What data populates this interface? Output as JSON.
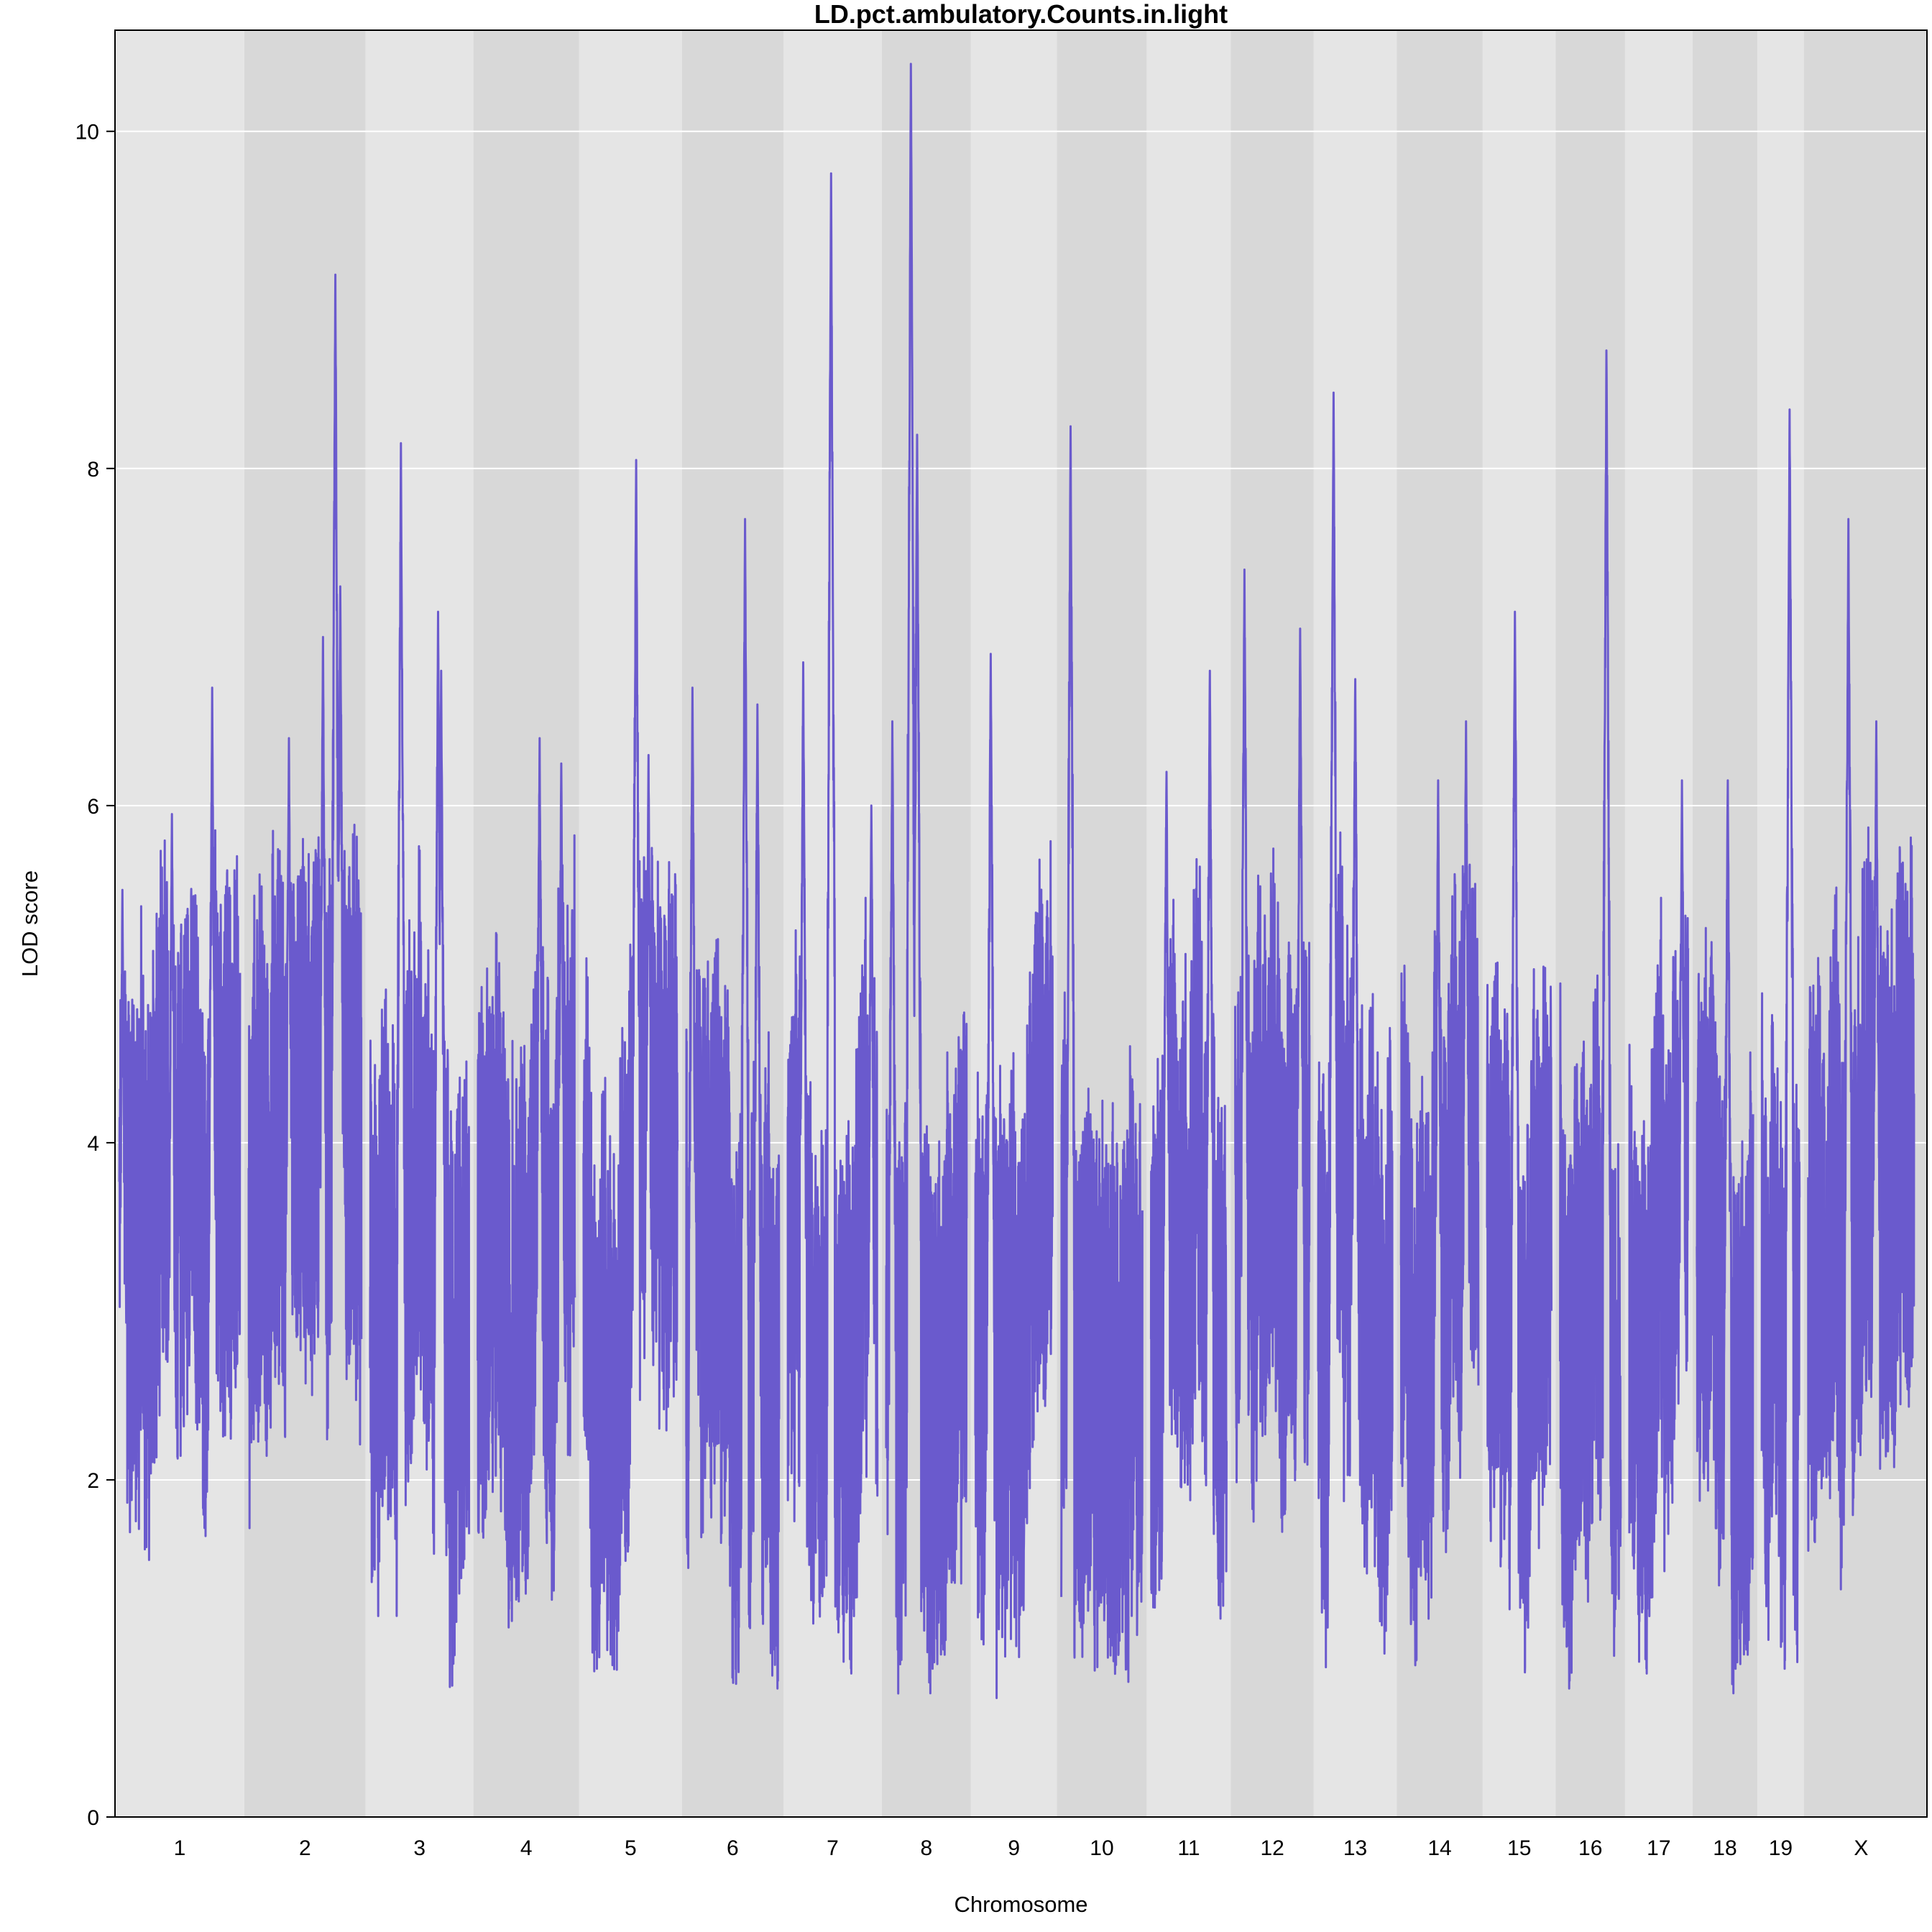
{
  "chart_data": {
    "type": "line",
    "title": "LD.pct.ambulatory.Counts.in.light",
    "xlabel": "Chromosome",
    "ylabel": "LOD score",
    "ylim": [
      0,
      10.6
    ],
    "y_ticks": [
      0,
      2,
      4,
      6,
      8,
      10
    ],
    "grid": true,
    "colors": {
      "series": "#6a5acd",
      "band_light": "#e5e5e5",
      "band_dark": "#d8d8d8",
      "grid": "#ffffff"
    },
    "categories": [
      "1",
      "2",
      "3",
      "4",
      "5",
      "6",
      "7",
      "8",
      "9",
      "10",
      "11",
      "12",
      "13",
      "14",
      "15",
      "16",
      "17",
      "18",
      "19",
      "X"
    ],
    "chromosome_lengths_mb": [
      195,
      182,
      160,
      157,
      152,
      150,
      145,
      130,
      125,
      131,
      122,
      120,
      120,
      125,
      104,
      98,
      95,
      91,
      61,
      171
    ],
    "series": [
      {
        "name": "",
        "peaks": [
          {
            "chr": "1",
            "pos_mb": 5,
            "lod": 5.5
          },
          {
            "chr": "1",
            "pos_mb": 85,
            "lod": 5.95
          },
          {
            "chr": "1",
            "pos_mb": 150,
            "lod": 6.7
          },
          {
            "chr": "2",
            "pos_mb": 65,
            "lod": 6.4
          },
          {
            "chr": "2",
            "pos_mb": 120,
            "lod": 7.0
          },
          {
            "chr": "2",
            "pos_mb": 140,
            "lod": 9.15
          },
          {
            "chr": "2",
            "pos_mb": 148,
            "lod": 7.3
          },
          {
            "chr": "3",
            "pos_mb": 50,
            "lod": 8.15
          },
          {
            "chr": "3",
            "pos_mb": 110,
            "lod": 7.15
          },
          {
            "chr": "3",
            "pos_mb": 115,
            "lod": 6.8
          },
          {
            "chr": "4",
            "pos_mb": 100,
            "lod": 6.4
          },
          {
            "chr": "4",
            "pos_mb": 135,
            "lod": 6.25
          },
          {
            "chr": "5",
            "pos_mb": 85,
            "lod": 8.05
          },
          {
            "chr": "5",
            "pos_mb": 105,
            "lod": 6.3
          },
          {
            "chr": "6",
            "pos_mb": 10,
            "lod": 6.7
          },
          {
            "chr": "6",
            "pos_mb": 95,
            "lod": 7.7
          },
          {
            "chr": "6",
            "pos_mb": 115,
            "lod": 6.6
          },
          {
            "chr": "7",
            "pos_mb": 25,
            "lod": 6.85
          },
          {
            "chr": "7",
            "pos_mb": 70,
            "lod": 9.75
          },
          {
            "chr": "7",
            "pos_mb": 135,
            "lod": 6.0
          },
          {
            "chr": "8",
            "pos_mb": 10,
            "lod": 6.5
          },
          {
            "chr": "8",
            "pos_mb": 40,
            "lod": 10.4
          },
          {
            "chr": "8",
            "pos_mb": 50,
            "lod": 8.2
          },
          {
            "chr": "9",
            "pos_mb": 25,
            "lod": 6.9
          },
          {
            "chr": "10",
            "pos_mb": 15,
            "lod": 8.25
          },
          {
            "chr": "11",
            "pos_mb": 25,
            "lod": 6.2
          },
          {
            "chr": "11",
            "pos_mb": 95,
            "lod": 6.8
          },
          {
            "chr": "12",
            "pos_mb": 15,
            "lod": 7.4
          },
          {
            "chr": "12",
            "pos_mb": 105,
            "lod": 7.05
          },
          {
            "chr": "13",
            "pos_mb": 25,
            "lod": 8.45
          },
          {
            "chr": "13",
            "pos_mb": 60,
            "lod": 6.75
          },
          {
            "chr": "14",
            "pos_mb": 60,
            "lod": 6.15
          },
          {
            "chr": "14",
            "pos_mb": 105,
            "lod": 6.5
          },
          {
            "chr": "15",
            "pos_mb": 45,
            "lod": 7.15
          },
          {
            "chr": "16",
            "pos_mb": 75,
            "lod": 8.7
          },
          {
            "chr": "17",
            "pos_mb": 85,
            "lod": 6.15
          },
          {
            "chr": "18",
            "pos_mb": 50,
            "lod": 6.15
          },
          {
            "chr": "19",
            "pos_mb": 45,
            "lod": 8.35
          },
          {
            "chr": "X",
            "pos_mb": 65,
            "lod": 7.7
          },
          {
            "chr": "X",
            "pos_mb": 110,
            "lod": 6.5
          }
        ]
      }
    ]
  }
}
